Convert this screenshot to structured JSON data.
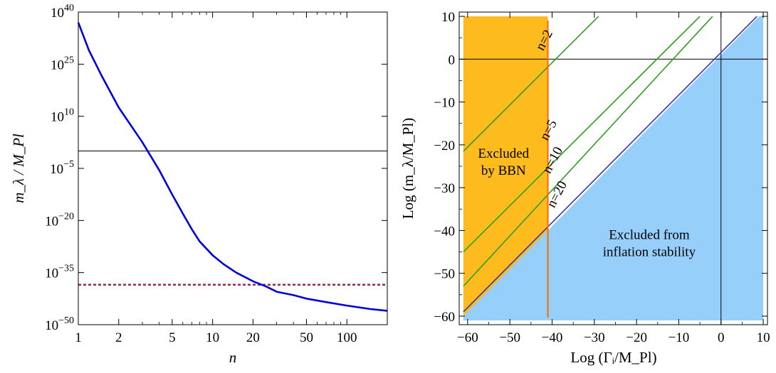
{
  "chart_data": [
    {
      "type": "line",
      "xlabel": "n",
      "ylabel": "m_λ / M_Pl",
      "x_scale": "log",
      "y_scale": "log",
      "xlim": [
        1,
        200
      ],
      "ylim": [
        1e-50,
        1e+40
      ],
      "x_ticks": [
        1,
        2,
        5,
        10,
        20,
        50,
        100
      ],
      "x_tick_labels": [
        "1",
        "2",
        "5",
        "10",
        "20",
        "50",
        "100"
      ],
      "y_ticks_exp": [
        -50,
        -35,
        -20,
        -5,
        10,
        25,
        40
      ],
      "y_tick_labels": [
        "10",
        "10",
        "10",
        "10",
        "10",
        "10",
        "10"
      ],
      "y_tick_sups": [
        "−50",
        "−35",
        "−20",
        "−5",
        "10",
        "25",
        "40"
      ],
      "series": [
        {
          "style": "solid",
          "color": "#0000dd",
          "x": [
            1,
            1.2,
            1.5,
            2,
            2.5,
            3,
            4,
            5,
            6,
            7,
            8,
            10,
            12,
            15,
            20,
            25,
            30,
            40,
            50,
            70,
            100,
            150,
            200
          ],
          "y_log10": [
            37,
            29,
            21.5,
            12.5,
            7,
            2.5,
            -5.5,
            -12.5,
            -18,
            -22.5,
            -26,
            -30,
            -32.5,
            -35,
            -37.5,
            -39,
            -40.5,
            -41.5,
            -42.5,
            -43.5,
            -44.5,
            -45.5,
            -46
          ]
        }
      ],
      "hlines": [
        {
          "y_log10": 0,
          "style": "solid",
          "color": "#000000"
        },
        {
          "y_log10": -38.5,
          "style": "dashed",
          "color": "#9b2a5a"
        }
      ]
    },
    {
      "type": "area",
      "xlabel": "Log (Γᵢ/M_Pl)",
      "ylabel": "Log  (m_λ/M_Pl)",
      "xlim": [
        -62,
        11
      ],
      "ylim": [
        -62,
        11
      ],
      "x_ticks": [
        -60,
        -50,
        -40,
        -30,
        -20,
        -10,
        0,
        10
      ],
      "x_tick_labels": [
        "−60",
        "−50",
        "−40",
        "−30",
        "−20",
        "−10",
        "0",
        "10"
      ],
      "y_ticks": [
        -60,
        -50,
        -40,
        -30,
        -20,
        -10,
        0,
        10
      ],
      "y_tick_labels": [
        "−60",
        "−50",
        "−40",
        "−30",
        "−20",
        "−10",
        "0",
        "10"
      ],
      "regions": [
        {
          "label_lines": [
            "Excluded",
            "by BBN"
          ],
          "color": "#fdbb1e",
          "x_range": [
            -61,
            -41
          ],
          "y_range": [
            -61,
            10
          ]
        },
        {
          "label_lines": [
            "Excluded from",
            "inflation stability"
          ],
          "color": "#96cffa",
          "boundary": "y <= x + 1"
        }
      ],
      "vline": {
        "x": -41,
        "color": "#ff6a00"
      },
      "axis_lines": [
        {
          "kind": "v",
          "value": 0,
          "color": "#000000"
        },
        {
          "kind": "h",
          "value": 0,
          "color": "#000000"
        }
      ],
      "lines": [
        {
          "label": "n=2",
          "color": "#2f9e1f",
          "x": [
            -61,
            -29
          ],
          "y": [
            -21.5,
            10
          ]
        },
        {
          "label": "n=5",
          "color": "#2f9e1f",
          "x": [
            -61,
            -5
          ],
          "y": [
            -45,
            10
          ]
        },
        {
          "label": "n=10",
          "color": "#2f9e1f",
          "x": [
            -61,
            -2
          ],
          "y": [
            -53,
            10
          ]
        },
        {
          "label": "n=20",
          "color": "#3333bb",
          "x": [
            -61,
            8.5
          ],
          "y": [
            -59,
            10
          ]
        }
      ],
      "line_labels": [
        {
          "text": "n=2",
          "x": -41,
          "y": 4,
          "angle": -62
        },
        {
          "text": "n=5",
          "x": -40,
          "y": -17,
          "angle": -62
        },
        {
          "text": "n=10",
          "x": -39,
          "y": -24,
          "angle": -62
        },
        {
          "text": "n=20",
          "x": -38,
          "y": -32,
          "angle": -62
        }
      ]
    }
  ]
}
